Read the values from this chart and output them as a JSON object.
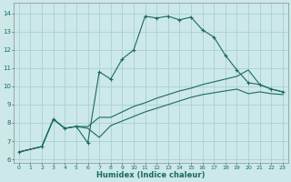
{
  "xlabel": "Humidex (Indice chaleur)",
  "xlim": [
    -0.5,
    23.5
  ],
  "ylim": [
    5.8,
    14.6
  ],
  "yticks": [
    6,
    7,
    8,
    9,
    10,
    11,
    12,
    13,
    14
  ],
  "xticks": [
    0,
    1,
    2,
    3,
    4,
    5,
    6,
    7,
    8,
    9,
    10,
    11,
    12,
    13,
    14,
    15,
    16,
    17,
    18,
    19,
    20,
    21,
    22,
    23
  ],
  "bg_color": "#cce8e8",
  "grid_color": "#aad0d0",
  "line_color": "#1a6b5e",
  "line1_x": [
    0,
    2,
    3,
    4,
    5,
    6,
    7,
    8,
    9,
    10,
    11,
    12,
    13,
    14,
    15,
    16,
    17,
    18,
    19,
    20,
    21,
    22,
    23
  ],
  "line1_y": [
    6.4,
    6.7,
    8.2,
    7.7,
    7.8,
    6.9,
    10.8,
    10.4,
    11.5,
    12.0,
    13.85,
    13.75,
    13.85,
    13.65,
    13.8,
    13.1,
    12.7,
    11.7,
    10.9,
    10.2,
    10.1,
    9.85,
    9.7
  ],
  "line2_x": [
    0,
    2,
    3,
    4,
    5,
    6,
    7,
    8,
    9,
    10,
    11,
    12,
    13,
    14,
    15,
    16,
    17,
    18,
    19,
    20,
    21,
    22,
    23
  ],
  "line2_y": [
    6.4,
    6.7,
    8.2,
    7.7,
    7.8,
    7.8,
    8.3,
    8.3,
    8.6,
    8.9,
    9.1,
    9.35,
    9.55,
    9.75,
    9.9,
    10.1,
    10.25,
    10.4,
    10.55,
    10.9,
    10.1,
    9.85,
    9.7
  ],
  "line3_x": [
    0,
    2,
    3,
    4,
    5,
    6,
    7,
    8,
    9,
    10,
    11,
    12,
    13,
    14,
    15,
    16,
    17,
    18,
    19,
    20,
    21,
    22,
    23
  ],
  "line3_y": [
    6.4,
    6.7,
    8.2,
    7.7,
    7.8,
    7.7,
    7.2,
    7.85,
    8.1,
    8.35,
    8.6,
    8.8,
    9.0,
    9.2,
    9.4,
    9.55,
    9.65,
    9.75,
    9.85,
    9.6,
    9.7,
    9.6,
    9.55
  ]
}
